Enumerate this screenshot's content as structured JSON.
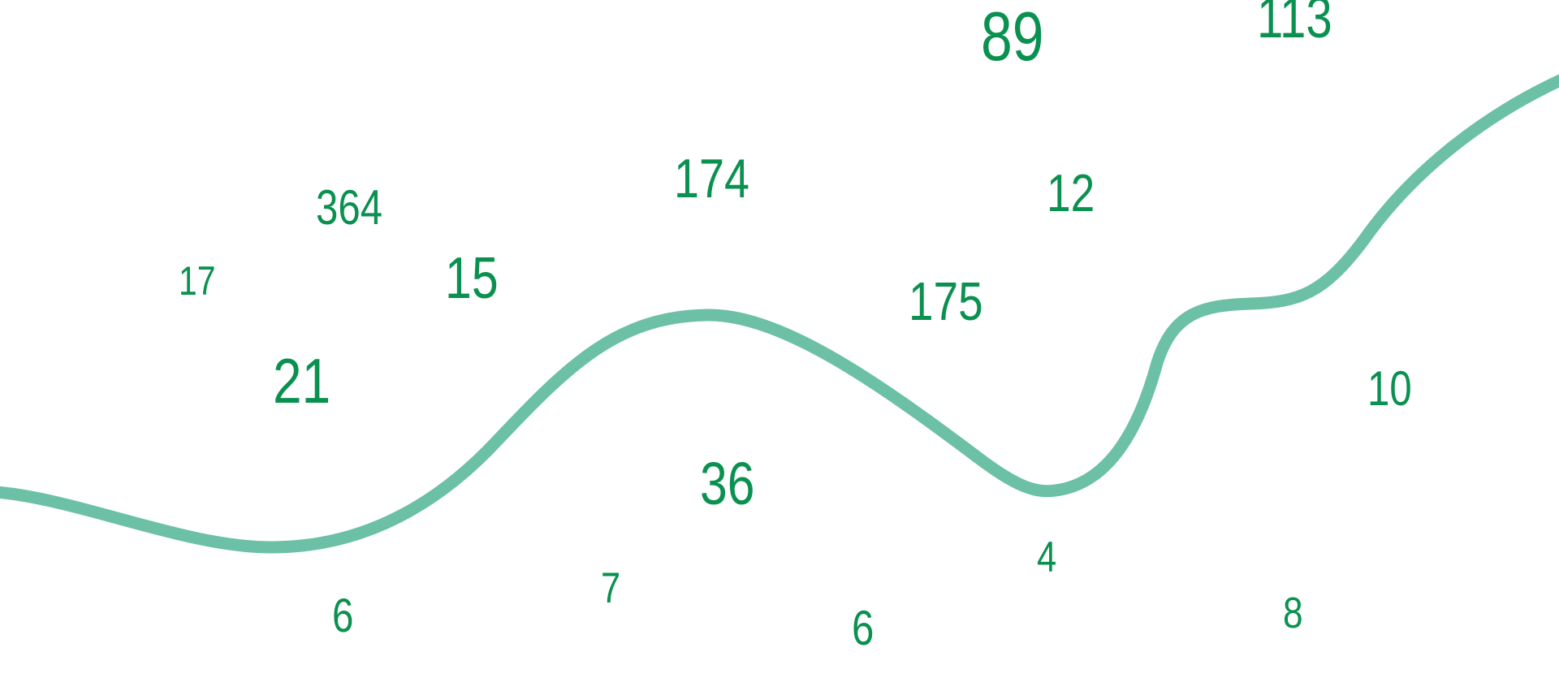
{
  "colors": {
    "number": "#0a9150",
    "curve": "#6cc0a6",
    "background": "#ffffff"
  },
  "numbers": [
    "364",
    "17",
    "15",
    "174",
    "21",
    "36",
    "7",
    "6",
    "89",
    "113",
    "12",
    "175",
    "10",
    "4",
    "6",
    "8"
  ]
}
